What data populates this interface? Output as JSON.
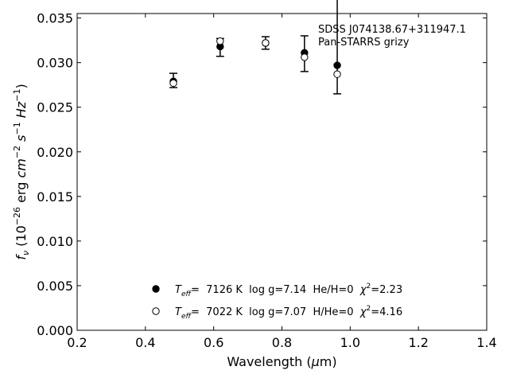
{
  "chart_data": {
    "type": "scatter",
    "x_label_parts": [
      "Wavelength (",
      "μ",
      "m)"
    ],
    "y_label_parts": {
      "f": "f",
      "nu": "ν",
      "a": " (10",
      "e1": "−26",
      "b": " erg ",
      "cm": "cm",
      "e2": "−2",
      "s": " s",
      "e3": "−1",
      "hz": " Hz",
      "e4": "−1",
      "c": ")"
    },
    "xlim": [
      0.2,
      1.4
    ],
    "ylim": [
      0.0,
      0.0355
    ],
    "x_ticks": [
      0.2,
      0.4,
      0.6,
      0.8,
      1.0,
      1.2,
      1.4
    ],
    "x_tick_labels": [
      "0.2",
      "0.4",
      "0.6",
      "0.8",
      "1.0",
      "1.2",
      "1.4"
    ],
    "y_ticks": [
      0.0,
      0.005,
      0.01,
      0.015,
      0.02,
      0.025,
      0.03,
      0.035
    ],
    "y_tick_labels": [
      "0.000",
      "0.005",
      "0.010",
      "0.015",
      "0.020",
      "0.025",
      "0.030",
      "0.035"
    ],
    "grid": false,
    "observed": [
      {
        "x": 0.482,
        "y": 0.028,
        "err": 0.0008
      },
      {
        "x": 0.619,
        "y": 0.0317,
        "err": 0.001
      },
      {
        "x": 0.752,
        "y": 0.0322,
        "err": 0.0007
      },
      {
        "x": 0.866,
        "y": 0.031,
        "err": 0.002
      },
      {
        "x": 0.962,
        "y": 0.032,
        "err": 0.0055
      }
    ],
    "series": [
      {
        "marker": "filled",
        "x": [
          0.482,
          0.619,
          0.752,
          0.866,
          0.962
        ],
        "y": [
          0.0279,
          0.0318,
          0.0322,
          0.0311,
          0.0297
        ]
      },
      {
        "marker": "open",
        "x": [
          0.482,
          0.619,
          0.752,
          0.866,
          0.962
        ],
        "y": [
          0.0277,
          0.0324,
          0.0322,
          0.0306,
          0.0287
        ]
      }
    ],
    "legend": [
      {
        "marker": "filled",
        "T": "T",
        "eff": "eff",
        "rest": "=  7126 K  log g=7.14  He/H=0  ",
        "chi": "χ",
        "sup": "2",
        "val": "=2.23"
      },
      {
        "marker": "open",
        "T": "T",
        "eff": "eff",
        "rest": "=  7022 K  log g=7.07  H/He=0  ",
        "chi": "χ",
        "sup": "2",
        "val": "=4.16"
      }
    ],
    "annotation": [
      "SDSS J074138.67+311947.1",
      "Pan-STARRS grizy"
    ]
  }
}
